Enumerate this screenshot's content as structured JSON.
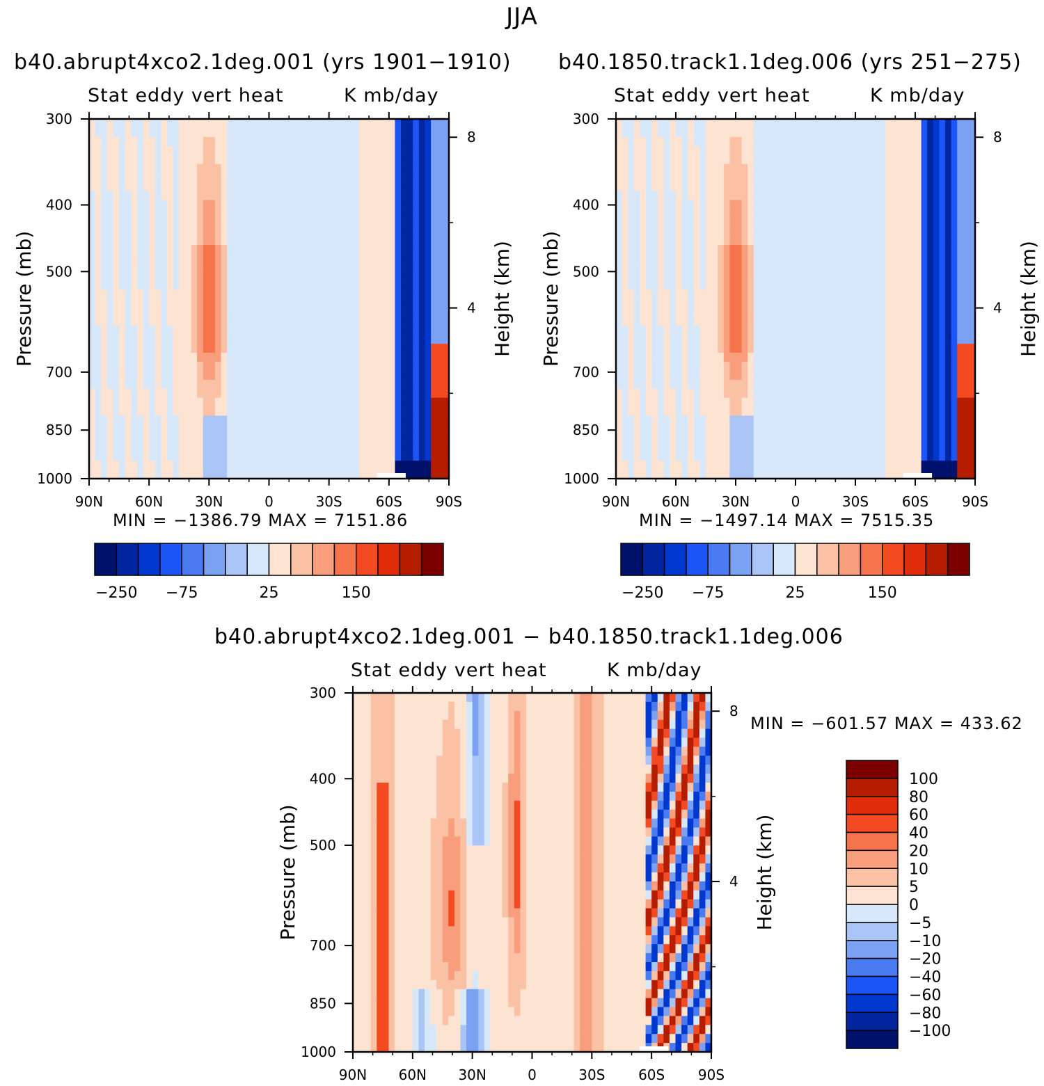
{
  "figure": {
    "title": "JJA",
    "diff_title": "b40.abrupt4xco2.1deg.001 − b40.1850.track1.1deg.006"
  },
  "colors": {
    "panel_scale": [
      "#00126b",
      "#0126a0",
      "#0037cf",
      "#1b55f5",
      "#4a7bf0",
      "#7ba1f2",
      "#aac4f6",
      "#d8e8fb",
      "#fde4d2",
      "#fbc1a5",
      "#f89e7d",
      "#f6744c",
      "#f34a22",
      "#e02c09",
      "#b41d00",
      "#7d0000"
    ],
    "diff_scale": [
      "#00126b",
      "#0126a0",
      "#0037cf",
      "#1b55f5",
      "#4a7bf0",
      "#7ba1f2",
      "#aac4f6",
      "#d8e8fb",
      "#fde4d2",
      "#fbc1a5",
      "#f89e7d",
      "#f6744c",
      "#f34a22",
      "#e02c09",
      "#b41d00",
      "#7d0000"
    ]
  },
  "chart_data": [
    {
      "type": "heatmap",
      "title": "b40.abrupt4xco2.1deg.001 (yrs 1901−1910)",
      "subtitle_left": "Stat eddy vert heat",
      "subtitle_right": "K mb/day",
      "ylabel": "Pressure (mb)",
      "ylabel_right": "Height (km)",
      "x_ticks": [
        "90N",
        "60N",
        "30N",
        "0",
        "30S",
        "60S",
        "90S"
      ],
      "y_ticks": [
        "300",
        "400",
        "500",
        "700",
        "850",
        "1000"
      ],
      "y_right_ticks": [
        "8",
        "4"
      ],
      "ylim": [
        1000,
        300
      ],
      "stats": "MIN = −1386.79   MAX = 7151.86",
      "colorbar_labels": [
        "−250",
        "−75",
        "25",
        "150"
      ],
      "pattern": "diff-like: mostly weak (0 to ±25), positive band near 30N in mid levels, strong negative (<−250) near 75S–85S, strong positive near 85S–90S at low levels"
    },
    {
      "type": "heatmap",
      "title": "b40.1850.track1.1deg.006 (yrs 251−275)",
      "subtitle_left": "Stat eddy vert heat",
      "subtitle_right": "K mb/day",
      "ylabel": "Pressure (mb)",
      "ylabel_right": "Height (km)",
      "x_ticks": [
        "90N",
        "60N",
        "30N",
        "0",
        "30S",
        "60S",
        "90S"
      ],
      "y_ticks": [
        "300",
        "400",
        "500",
        "700",
        "850",
        "1000"
      ],
      "y_right_ticks": [
        "8",
        "4"
      ],
      "ylim": [
        1000,
        300
      ],
      "stats": "MIN = −1497.14   MAX = 7515.35",
      "colorbar_labels": [
        "−250",
        "−75",
        "25",
        "150"
      ]
    },
    {
      "type": "heatmap",
      "title": "b40.abrupt4xco2.1deg.001 − b40.1850.track1.1deg.006",
      "subtitle_left": "Stat eddy vert heat",
      "subtitle_right": "K mb/day",
      "ylabel": "Pressure (mb)",
      "ylabel_right": "Height (km)",
      "x_ticks": [
        "90N",
        "60N",
        "30N",
        "0",
        "30S",
        "60S",
        "90S"
      ],
      "y_ticks": [
        "300",
        "400",
        "500",
        "700",
        "850",
        "1000"
      ],
      "y_right_ticks": [
        "8",
        "4"
      ],
      "ylim": [
        1000,
        300
      ],
      "stats": "MIN = −601.57   MAX = 433.62",
      "colorbar_labels": [
        "100",
        "80",
        "60",
        "40",
        "20",
        "10",
        "5",
        "0",
        "−5",
        "−10",
        "−20",
        "−40",
        "−60",
        "−80",
        "−100"
      ]
    }
  ]
}
